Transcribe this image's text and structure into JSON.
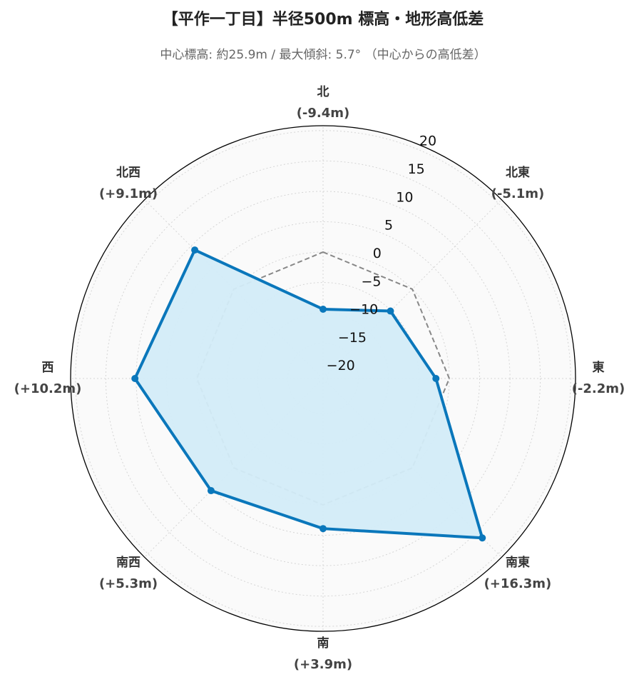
{
  "chart_data": {
    "type": "radar",
    "title": "【平作一丁目】半径500m 標高・地形高低差",
    "subtitle": "中心標高: 約25.9m / 最大傾斜: 5.7° （中心からの高低差）",
    "categories": [
      "北",
      "北東",
      "東",
      "南東",
      "南",
      "南西",
      "西",
      "北西"
    ],
    "values": [
      -9.4,
      -5.1,
      -2.2,
      16.3,
      3.9,
      5.3,
      10.2,
      9.1
    ],
    "value_labels": [
      "(-9.4m)",
      "(-5.1m)",
      "(-2.2m)",
      "(+16.3m)",
      "(+3.9m)",
      "(+5.3m)",
      "(+10.2m)",
      "(+9.1m)"
    ],
    "color": "#0a77bb",
    "fill_color": "#d3ecf8",
    "reference_line": 0,
    "ylim": [
      -20.8,
      20.8
    ],
    "yticks": [
      {
        "value": -20,
        "label": "−20"
      },
      {
        "value": -15,
        "label": "−15"
      },
      {
        "value": -10,
        "label": "−10"
      },
      {
        "value": -5,
        "label": "−5"
      },
      0,
      5,
      10,
      15,
      20
    ],
    "grid": true
  }
}
